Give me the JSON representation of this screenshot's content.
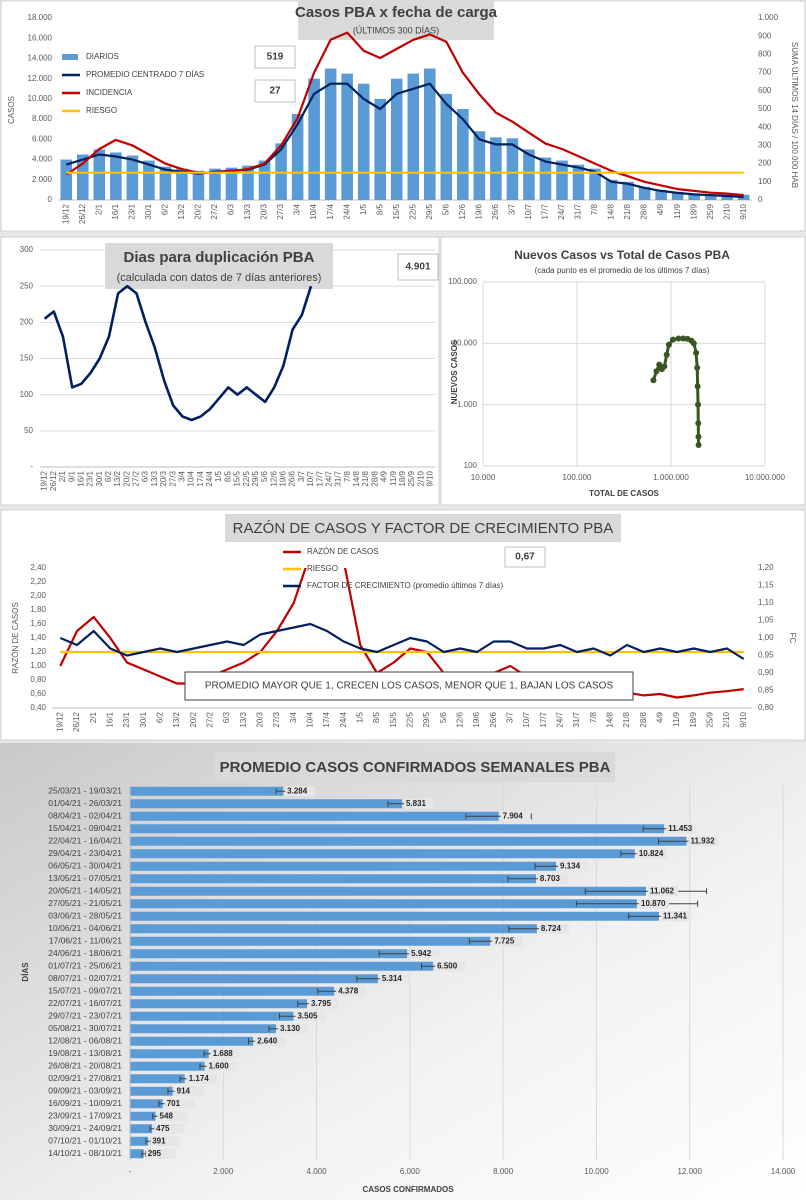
{
  "chart_data": [
    {
      "type": "bar",
      "title": "Casos  PBA x fecha de carga",
      "subtitle": "(ÚLTIMOS 300  DÍAS)",
      "y_label": "CASOS",
      "y2_label": "SUMA ÚLTIMOS 14 DÍAS / 100.000 HAB",
      "grid": false,
      "current_values": [
        519,
        27
      ],
      "categories": [
        "19/12",
        "26/12",
        "2/1",
        "16/1",
        "23/1",
        "30/1",
        "6/2",
        "13/2",
        "20/2",
        "27/2",
        "6/3",
        "13/3",
        "20/3",
        "27/3",
        "3/4",
        "10/4",
        "17/4",
        "24/4",
        "1/5",
        "8/5",
        "15/5",
        "22/5",
        "29/5",
        "5/6",
        "12/6",
        "19/6",
        "26/6",
        "3/7",
        "10/7",
        "17/7",
        "24/7",
        "31/7",
        "7/8",
        "14/8",
        "21/8",
        "28/8",
        "4/9",
        "11/9",
        "18/9",
        "25/9",
        "2/10",
        "9/10"
      ],
      "series": [
        {
          "name": "DIARIOS",
          "type": "bar",
          "color": "#5b9bd5",
          "values": [
            4000,
            4500,
            5000,
            4700,
            4400,
            3900,
            3300,
            3100,
            2900,
            3100,
            3200,
            3400,
            3900,
            5600,
            8500,
            12000,
            13000,
            12500,
            11500,
            10000,
            12000,
            12500,
            13000,
            10500,
            9000,
            6800,
            6200,
            6100,
            5000,
            4200,
            3900,
            3500,
            3100,
            2000,
            1800,
            1300,
            1000,
            800,
            600,
            530,
            450,
            519
          ]
        },
        {
          "name": "PROMEDIO CENTRADO 7 DÍAS",
          "type": "line",
          "color": "#002060",
          "values": [
            3500,
            4000,
            4500,
            4300,
            4000,
            3500,
            3000,
            2800,
            2600,
            2800,
            2900,
            3000,
            3500,
            5000,
            7500,
            10500,
            11500,
            11500,
            10000,
            9000,
            10500,
            11000,
            11500,
            9500,
            8000,
            6000,
            5500,
            5500,
            4500,
            3800,
            3500,
            3200,
            2800,
            1800,
            1600,
            1200,
            900,
            700,
            550,
            480,
            400,
            300
          ]
        },
        {
          "name": "INCIDENCIA",
          "type": "line",
          "axis": "y2",
          "color": "#c00000",
          "values": [
            140,
            200,
            280,
            330,
            300,
            250,
            200,
            170,
            150,
            150,
            160,
            170,
            200,
            300,
            450,
            700,
            880,
            920,
            820,
            780,
            830,
            880,
            910,
            870,
            700,
            580,
            480,
            430,
            370,
            310,
            280,
            240,
            200,
            160,
            130,
            100,
            80,
            60,
            50,
            40,
            35,
            27
          ]
        },
        {
          "name": "RIESGO",
          "type": "line",
          "axis": "y2",
          "color": "#ffc000",
          "values": [
            150,
            150,
            150,
            150,
            150,
            150,
            150,
            150,
            150,
            150,
            150,
            150,
            150,
            150,
            150,
            150,
            150,
            150,
            150,
            150,
            150,
            150,
            150,
            150,
            150,
            150,
            150,
            150,
            150,
            150,
            150,
            150,
            150,
            150,
            150,
            150,
            150,
            150,
            150,
            150,
            150,
            150
          ]
        }
      ],
      "ylim": [
        0,
        18000
      ],
      "yticks": [
        0,
        {
          "value": 2000,
          "label": "2.000"
        },
        {
          "value": 4000,
          "label": "4.000"
        },
        {
          "value": 6000,
          "label": "6.000"
        },
        {
          "value": 8000,
          "label": "8.000"
        },
        {
          "value": 10000,
          "label": "10.000"
        },
        {
          "value": 12000,
          "label": "12.000"
        },
        {
          "value": 14000,
          "label": "14.000"
        },
        {
          "value": 16000,
          "label": "16.000"
        },
        {
          "value": 18000,
          "label": "18.000"
        }
      ],
      "y2lim": [
        0,
        1000
      ],
      "y2ticks": [
        0,
        100,
        200,
        300,
        400,
        500,
        600,
        700,
        800,
        900,
        {
          "value": 1000,
          "label": "1.000"
        }
      ]
    },
    {
      "type": "line",
      "title": "Dias para duplicación PBA",
      "subtitle": "(calculada con datos de 7 días anteriores)",
      "grid": true,
      "current_value": {
        "value": 4901,
        "label": "4.901"
      },
      "categories": [
        "19/12",
        "26/12",
        "2/1",
        "9/1",
        "16/1",
        "23/1",
        "30/1",
        "6/2",
        "13/2",
        "20/2",
        "27/2",
        "6/3",
        "13/3",
        "20/3",
        "27/3",
        "3/4",
        "10/4",
        "17/4",
        "24/4",
        "1/5",
        "8/5",
        "15/5",
        "22/5",
        "29/5",
        "5/6",
        "12/6",
        "19/6",
        "26/6",
        "3/7",
        "10/7",
        "17/7",
        "24/7",
        "31/7",
        "7/8",
        "14/8",
        "21/8",
        "28/8",
        "4/9",
        "11/9",
        "18/9",
        "25/9",
        "2/10",
        "9/10"
      ],
      "series": [
        {
          "name": "Dias para duplicación",
          "color": "#002060",
          "values": [
            205,
            215,
            180,
            110,
            115,
            130,
            150,
            180,
            240,
            250,
            240,
            200,
            165,
            120,
            85,
            70,
            65,
            70,
            80,
            95,
            110,
            100,
            110,
            100,
            90,
            110,
            140,
            190,
            210,
            250,
            null,
            null,
            null,
            null,
            null,
            null,
            null,
            null,
            null,
            null,
            null,
            null,
            null
          ]
        }
      ],
      "ylim": [
        0,
        300
      ],
      "yticks": [
        {
          "value": 0,
          "label": "-"
        },
        50,
        100,
        150,
        200,
        250,
        300
      ]
    },
    {
      "type": "scatter",
      "title": "Nuevos Casos vs Total de Casos PBA",
      "subtitle": "(cada punto es el promedio de los últimos 7 días)",
      "x_label": "TOTAL DE CASOS",
      "y_label": "NUEVOS CASOS",
      "log": true,
      "grid": true,
      "color": "#375623",
      "x": [
        650000,
        700000,
        750000,
        800000,
        850000,
        900000,
        950000,
        1050000,
        1200000,
        1350000,
        1500000,
        1650000,
        1750000,
        1850000,
        1900000,
        1920000,
        1940000,
        1950000,
        1960000,
        1965000
      ],
      "y": [
        2500,
        3500,
        4500,
        3800,
        4200,
        6500,
        9500,
        11500,
        12000,
        12000,
        11800,
        11000,
        10000,
        7000,
        4000,
        2000,
        1000,
        500,
        300,
        220
      ],
      "xlim": [
        10000,
        10000000
      ],
      "xticks": [
        {
          "value": 10000,
          "label": "10.000"
        },
        {
          "value": 100000,
          "label": "100.000"
        },
        {
          "value": 1000000,
          "label": "1.000.000"
        },
        {
          "value": 10000000,
          "label": "10.000.000"
        }
      ],
      "ylim": [
        100,
        100000
      ],
      "yticks": [
        100,
        {
          "value": 1000,
          "label": "1.000"
        },
        {
          "value": 10000,
          "label": "10.000"
        },
        {
          "value": 100000,
          "label": "100.000"
        }
      ]
    },
    {
      "type": "line",
      "title": "RAZÓN DE CASOS Y FACTOR DE CRECIMIENTO PBA",
      "y_label": "RAZÓN DE CASOS",
      "y2_label": "FC",
      "grid": false,
      "current_value": {
        "value": 0.67,
        "label": "0,67"
      },
      "annotation": "PROMEDIO MAYOR QUE 1, CRECEN LOS CASOS, MENOR QUE 1, BAJAN LOS CASOS",
      "categories": [
        "19/12",
        "26/12",
        "2/1",
        "16/1",
        "23/1",
        "30/1",
        "6/2",
        "13/2",
        "20/2",
        "27/2",
        "6/3",
        "13/3",
        "20/3",
        "27/3",
        "3/4",
        "10/4",
        "17/4",
        "24/4",
        "1/5",
        "8/5",
        "15/5",
        "22/5",
        "29/5",
        "5/6",
        "12/6",
        "19/6",
        "26/6",
        "3/7",
        "10/7",
        "17/7",
        "24/7",
        "31/7",
        "7/8",
        "14/8",
        "21/8",
        "28/8",
        "4/9",
        "11/9",
        "18/9",
        "25/9",
        "2/10",
        "9/10"
      ],
      "series": [
        {
          "name": "RAZÓN DE CASOS",
          "color": "#c00000",
          "values": [
            1.0,
            1.5,
            1.7,
            1.4,
            1.05,
            0.95,
            0.85,
            0.75,
            0.75,
            0.85,
            0.95,
            1.05,
            1.2,
            1.5,
            1.9,
            2.6,
            2.8,
            2.5,
            1.3,
            0.9,
            1.05,
            1.25,
            1.2,
            0.9,
            0.75,
            0.7,
            0.9,
            1.0,
            0.85,
            0.75,
            0.7,
            0.7,
            0.72,
            0.65,
            0.62,
            0.58,
            0.6,
            0.55,
            0.58,
            0.62,
            0.64,
            0.67
          ]
        },
        {
          "name": "RIESGO",
          "color": "#ffc000",
          "values": [
            1.2,
            1.2,
            1.2,
            1.2,
            1.2,
            1.2,
            1.2,
            1.2,
            1.2,
            1.2,
            1.2,
            1.2,
            1.2,
            1.2,
            1.2,
            1.2,
            1.2,
            1.2,
            1.2,
            1.2,
            1.2,
            1.2,
            1.2,
            1.2,
            1.2,
            1.2,
            1.2,
            1.2,
            1.2,
            1.2,
            1.2,
            1.2,
            1.2,
            1.2,
            1.2,
            1.2,
            1.2,
            1.2,
            1.2,
            1.2,
            1.2,
            1.2
          ]
        },
        {
          "name": "FACTOR DE CRECIMIENTO (promedio últimos 7 días)",
          "axis": "y2",
          "color": "#002060",
          "values": [
            1.0,
            0.98,
            1.02,
            0.97,
            0.95,
            0.96,
            0.97,
            0.96,
            0.97,
            0.98,
            0.99,
            0.98,
            1.01,
            1.02,
            1.03,
            1.04,
            1.02,
            0.99,
            0.97,
            0.96,
            0.98,
            1.0,
            0.99,
            0.96,
            0.97,
            0.96,
            0.99,
            0.99,
            0.97,
            0.97,
            0.98,
            0.96,
            0.97,
            0.95,
            0.98,
            0.96,
            0.97,
            0.96,
            0.97,
            0.96,
            0.97,
            0.94
          ]
        }
      ],
      "ylim": [
        0.4,
        2.4
      ],
      "yticks": [
        {
          "value": 0.4,
          "label": "0,40"
        },
        {
          "value": 0.6,
          "label": "0,60"
        },
        {
          "value": 0.8,
          "label": "0,80"
        },
        {
          "value": 1.0,
          "label": "1,00"
        },
        {
          "value": 1.2,
          "label": "1,20"
        },
        {
          "value": 1.4,
          "label": "1,40"
        },
        {
          "value": 1.6,
          "label": "1,60"
        },
        {
          "value": 1.8,
          "label": "1,80"
        },
        {
          "value": 2.0,
          "label": "2,00"
        },
        {
          "value": 2.2,
          "label": "2,20"
        },
        {
          "value": 2.4,
          "label": "2,40"
        }
      ],
      "y2lim": [
        0.8,
        1.2
      ],
      "y2ticks": [
        {
          "value": 0.8,
          "label": "0,80"
        },
        {
          "value": 0.85,
          "label": "0,85"
        },
        {
          "value": 0.9,
          "label": "0,90"
        },
        {
          "value": 0.95,
          "label": "0,95"
        },
        {
          "value": 1.0,
          "label": "1,00"
        },
        {
          "value": 1.05,
          "label": "1,05"
        },
        {
          "value": 1.1,
          "label": "1,10"
        },
        {
          "value": 1.15,
          "label": "1,15"
        },
        {
          "value": 1.2,
          "label": "1,20"
        }
      ]
    },
    {
      "type": "hbar",
      "title": "PROMEDIO CASOS CONFIRMADOS SEMANALES PBA",
      "x_label": "CASOS CONFIRMADOS",
      "y_label": "DÍAS",
      "grid": true,
      "color": "#5b9bd5",
      "categories": [
        "25/03/21 - 19/03/21",
        "01/04/21 - 26/03/21",
        "08/04/21 - 02/04/21",
        "15/04/21 - 09/04/21",
        "22/04/21 - 16/04/21",
        "29/04/21 - 23/04/21",
        "06/05/21 - 30/04/21",
        "13/05/21 - 07/05/21",
        "20/05/21 - 14/05/21",
        "27/05/21 - 21/05/21",
        "03/06/21 - 28/05/21",
        "10/06/21 - 04/06/21",
        "17/06/21 - 11/06/21",
        "24/06/21 - 18/06/21",
        "01/07/21 - 25/06/21",
        "08/07/21 - 02/07/21",
        "15/07/21 - 09/07/21",
        "22/07/21 - 16/07/21",
        "29/07/21 - 23/07/21",
        "05/08/21 - 30/07/21",
        "12/08/21 - 06/08/21",
        "19/08/21 - 13/08/21",
        "26/08/21 - 20/08/21",
        "02/09/21 - 27/08/21",
        "09/09/21 - 03/09/21",
        "16/09/21 - 10/09/21",
        "23/09/21 - 17/09/21",
        "30/09/21 - 24/09/21",
        "07/10/21 - 01/10/21",
        "14/10/21 - 08/10/21"
      ],
      "values": [
        3284,
        5831,
        7904,
        11453,
        11932,
        10824,
        9134,
        8703,
        11062,
        10870,
        11341,
        8724,
        7725,
        5942,
        6500,
        5314,
        4378,
        3795,
        3505,
        3130,
        2640,
        1688,
        1600,
        1174,
        914,
        701,
        548,
        475,
        391,
        295
      ],
      "value_labels": [
        "3.284",
        "5.831",
        "7.904",
        "11.453",
        "11.932",
        "10.824",
        "9.134",
        "8.703",
        "11.062",
        "10.870",
        "11.341",
        "8.724",
        "7.725",
        "5.942",
        "6.500",
        "5.314",
        "4.378",
        "3.795",
        "3.505",
        "3.130",
        "2.640",
        "1.688",
        "1.600",
        "1.174",
        "914",
        "701",
        "548",
        "475",
        "391",
        "295"
      ],
      "errors": [
        150,
        300,
        700,
        450,
        600,
        300,
        450,
        600,
        1300,
        1300,
        650,
        600,
        450,
        600,
        250,
        450,
        350,
        200,
        300,
        150,
        100,
        100,
        100,
        100,
        100,
        80,
        60,
        50,
        50,
        40
      ],
      "xlim": [
        0,
        14000
      ],
      "xticks": [
        {
          "value": 0,
          "label": "-"
        },
        {
          "value": 2000,
          "label": "2.000"
        },
        {
          "value": 4000,
          "label": "4.000"
        },
        {
          "value": 6000,
          "label": "6.000"
        },
        {
          "value": 8000,
          "label": "8.000"
        },
        {
          "value": 10000,
          "label": "10.000"
        },
        {
          "value": 12000,
          "label": "12.000"
        },
        {
          "value": 14000,
          "label": "14.000"
        }
      ]
    }
  ]
}
